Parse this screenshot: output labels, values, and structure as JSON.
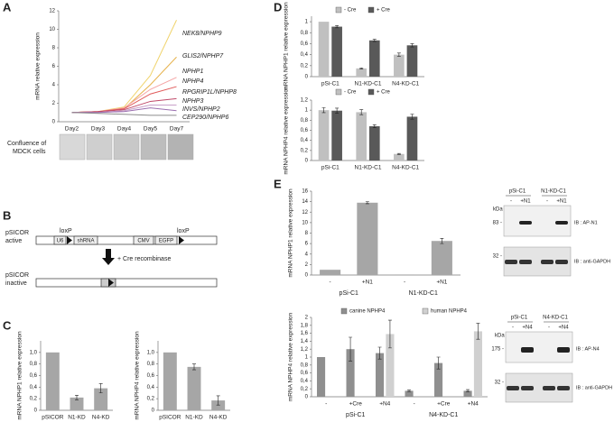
{
  "panel_labels": [
    "A",
    "B",
    "C",
    "D",
    "E"
  ],
  "panel_a_images": {
    "label": [
      "Confluence of",
      "MDCK cells"
    ]
  },
  "diagram": {
    "active_label": [
      "pSICOR",
      "active"
    ],
    "inactive_label": [
      "pSICOR",
      "inactive"
    ],
    "loxp": [
      "loxP",
      "loxP"
    ],
    "elements": [
      "U6",
      "shRNA",
      "CMV",
      "EGFP"
    ],
    "arrow_label": "+ Cre recombinase"
  },
  "blots": [
    {
      "lane_groups": [
        "pSi-C1",
        "N1-KD-C1"
      ],
      "lanes": [
        "-",
        "+N1",
        "-",
        "+N1"
      ],
      "kda": "kDa",
      "markers": [
        "83 -",
        "32 -"
      ],
      "antibodies": [
        "IB : AP-N1",
        "IB : anti-GAPDH"
      ]
    },
    {
      "lane_groups": [
        "pSi-C1",
        "N4-KD-C1"
      ],
      "lanes": [
        "-",
        "+N4",
        "-",
        "+N4"
      ],
      "kda": "kDa",
      "markers": [
        "175 -",
        "32 -"
      ],
      "antibodies": [
        "IB : AP-N4",
        "IB : anti-GAPDH"
      ]
    }
  ],
  "chart_data": [
    {
      "type": "line",
      "y_label": "mRNA relative expression",
      "categories": [
        "Day2",
        "Day3",
        "Day4",
        "Day5",
        "Day7"
      ],
      "ylim": [
        0,
        12
      ],
      "yticks": [
        0,
        2,
        4,
        6,
        8,
        10,
        12
      ],
      "series": [
        {
          "name": "NEK8/NPHP9",
          "color": "#f0d36c",
          "values": [
            1,
            1.1,
            1.6,
            5,
            11
          ]
        },
        {
          "name": "GLIS2/NPHP7",
          "color": "#e6b24c",
          "values": [
            1,
            1.1,
            1.4,
            4,
            7
          ]
        },
        {
          "name": "NPHP1",
          "color": "#f4a3a3",
          "values": [
            1,
            1.1,
            1.5,
            3.5,
            4.8
          ]
        },
        {
          "name": "NPHP4",
          "color": "#e05a5a",
          "values": [
            1,
            1.1,
            1.4,
            3,
            3.8
          ]
        },
        {
          "name": "RPGRIP1L/NPHP8",
          "color": "#c04a6a",
          "values": [
            1,
            1.1,
            1.3,
            2.2,
            2.5
          ]
        },
        {
          "name": "NPHP3",
          "color": "#c9a0c8",
          "values": [
            1,
            1,
            1.2,
            1.8,
            1.8
          ]
        },
        {
          "name": "INVS/NPHP2",
          "color": "#9b6fb0",
          "values": [
            1,
            1,
            1.1,
            1.5,
            1.2
          ]
        },
        {
          "name": "CEP290/NPHP6",
          "color": "#8c8c8c",
          "values": [
            1,
            0.9,
            0.8,
            0.7,
            0.7
          ]
        }
      ]
    },
    {
      "type": "bar",
      "y_label": "mRNA NPHP1 relative expression",
      "categories": [
        "pSICOR",
        "N1-KD",
        "N4-KD"
      ],
      "ylim": [
        0,
        1.2
      ],
      "yticks": [
        0,
        {
          "value": 0.2,
          "label": "0,2"
        },
        {
          "value": 0.4,
          "label": "0,4"
        },
        {
          "value": 0.6,
          "label": "0,6"
        },
        {
          "value": 0.8,
          "label": "0,8"
        },
        {
          "value": 1,
          "label": "1,0"
        }
      ],
      "series": [
        {
          "color": "#a6a6a6",
          "values": [
            1,
            0.22,
            0.38
          ],
          "errors": [
            null,
            0.04,
            0.08
          ]
        }
      ]
    },
    {
      "type": "bar",
      "y_label": "mRNA NPHP4 relative expression",
      "categories": [
        "pSICOR",
        "N1-KD",
        "N4-KD"
      ],
      "ylim": [
        0,
        1.2
      ],
      "yticks": [
        0,
        {
          "value": 0.2,
          "label": "0,2"
        },
        {
          "value": 0.4,
          "label": "0,4"
        },
        {
          "value": 0.6,
          "label": "0,6"
        },
        {
          "value": 0.8,
          "label": "0,8"
        },
        {
          "value": 1,
          "label": "1,0"
        }
      ],
      "series": [
        {
          "color": "#a6a6a6",
          "values": [
            1,
            0.75,
            0.17
          ],
          "errors": [
            null,
            0.05,
            0.08
          ]
        }
      ]
    },
    {
      "type": "bar",
      "y_label": "mRNA NPHP1 relative expression",
      "categories": [
        "pSi-C1",
        "N1-KD-C1",
        "N4-KD-C1"
      ],
      "legend": true,
      "ylim": [
        0,
        1.1
      ],
      "yticks": [
        0,
        {
          "value": 0.2,
          "label": "0,2"
        },
        {
          "value": 0.4,
          "label": "0,4"
        },
        {
          "value": 0.6,
          "label": "0,6"
        },
        {
          "value": 0.8,
          "label": "0,8"
        },
        1
      ],
      "series": [
        {
          "name": "- Cre",
          "color": "#c0c0c0",
          "values": [
            1.0,
            0.15,
            0.4
          ],
          "errors": [
            null,
            0.01,
            0.03
          ]
        },
        {
          "name": "+ Cre",
          "color": "#595959",
          "values": [
            0.91,
            0.66,
            0.57
          ],
          "errors": [
            0.02,
            0.02,
            0.03
          ]
        }
      ]
    },
    {
      "type": "bar",
      "y_label": "mRNA NPHP4 relative expression",
      "categories": [
        "pSi-C1",
        "N1-KD-C1",
        "N4-KD-C1"
      ],
      "legend": true,
      "ylim": [
        0,
        1.2
      ],
      "yticks": [
        0,
        {
          "value": 0.2,
          "label": "0,2"
        },
        {
          "value": 0.4,
          "label": "0,4"
        },
        {
          "value": 0.6,
          "label": "0,6"
        },
        {
          "value": 0.8,
          "label": "0,8"
        },
        1,
        {
          "value": 1.2,
          "label": "1,2"
        }
      ],
      "series": [
        {
          "name": "- Cre",
          "color": "#c0c0c0",
          "values": [
            1.0,
            0.96,
            0.13
          ],
          "errors": [
            0.05,
            0.05,
            0.01
          ]
        },
        {
          "name": "+ Cre",
          "color": "#595959",
          "values": [
            0.99,
            0.68,
            0.87
          ],
          "errors": [
            0.05,
            0.03,
            0.05
          ]
        }
      ]
    },
    {
      "type": "bar",
      "y_label": "mRNA NPHP1 relative expression",
      "categories": [
        "-",
        "+N1",
        "-",
        "+N1"
      ],
      "group_labels": [
        "pSi-C1",
        "N1-KD-C1"
      ],
      "ylim": [
        0,
        16
      ],
      "yticks": [
        0,
        2,
        4,
        6,
        8,
        10,
        12,
        14,
        16
      ],
      "series": [
        {
          "color": "#a6a6a6",
          "values": [
            1,
            13.8,
            0.1,
            6.5
          ],
          "errors": [
            null,
            0.2,
            null,
            0.5
          ]
        }
      ]
    },
    {
      "type": "bar",
      "y_label": "mRNA NPHP4 relative expression",
      "categories": [
        "-",
        "+Cre",
        "+N4",
        "-",
        "+Cre",
        "+N4"
      ],
      "group_labels": [
        "pSi-C1",
        "N4-KD-C1"
      ],
      "legend": true,
      "ylim": [
        0,
        2
      ],
      "yticks": [
        0,
        {
          "value": 0.2,
          "label": "0,2"
        },
        {
          "value": 0.4,
          "label": "0,4"
        },
        {
          "value": 0.6,
          "label": "0,6"
        },
        {
          "value": 0.8,
          "label": "0,8"
        },
        1,
        {
          "value": 1.2,
          "label": "1,2"
        },
        {
          "value": 1.4,
          "label": "1,4"
        },
        {
          "value": 1.6,
          "label": "1,6"
        },
        {
          "value": 1.8,
          "label": "1,8"
        },
        2
      ],
      "series": [
        {
          "name": "canine NPHP4",
          "color": "#8f8f8f",
          "values": [
            1.0,
            1.2,
            1.1,
            0.15,
            0.85,
            0.15
          ],
          "errors": [
            null,
            0.3,
            0.15,
            0.02,
            0.15,
            0.03
          ]
        },
        {
          "name": "human NPHP4",
          "color": "#d0d0d0",
          "values": [
            null,
            null,
            1.58,
            null,
            null,
            1.65
          ],
          "errors": [
            null,
            null,
            0.35,
            null,
            null,
            0.2
          ]
        }
      ]
    }
  ]
}
